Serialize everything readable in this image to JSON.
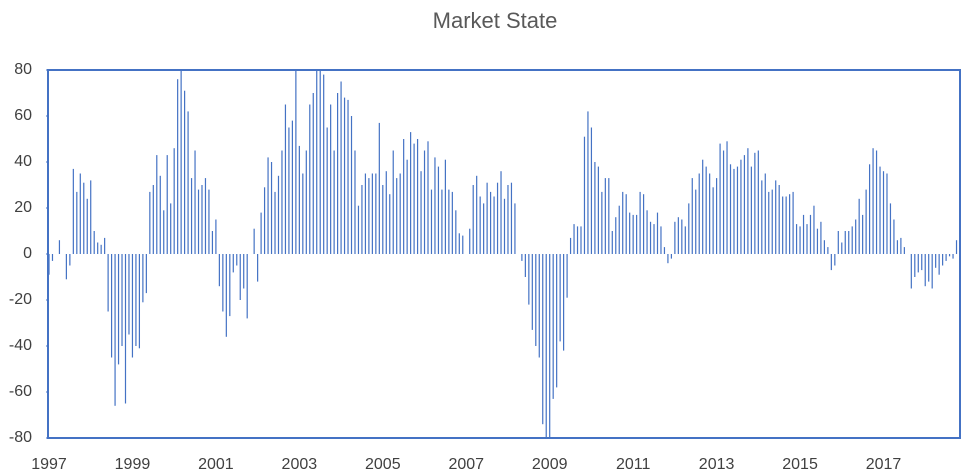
{
  "chart_data": {
    "type": "bar",
    "title": "Market State",
    "categories": [
      "1997",
      null,
      null,
      null,
      null,
      null,
      null,
      null,
      null,
      null,
      null,
      null,
      null,
      null,
      null,
      null,
      null,
      null,
      null,
      null,
      null,
      null,
      null,
      null,
      "1999",
      null,
      null,
      null,
      null,
      null,
      null,
      null,
      null,
      null,
      null,
      null,
      null,
      null,
      null,
      null,
      null,
      null,
      null,
      null,
      null,
      null,
      null,
      null,
      "2001",
      null,
      null,
      null,
      null,
      null,
      null,
      null,
      null,
      null,
      null,
      null,
      null,
      null,
      null,
      null,
      null,
      null,
      null,
      null,
      null,
      null,
      null,
      null,
      "2003",
      null,
      null,
      null,
      null,
      null,
      null,
      null,
      null,
      null,
      null,
      null,
      null,
      null,
      null,
      null,
      null,
      null,
      null,
      null,
      null,
      null,
      null,
      null,
      "2005",
      null,
      null,
      null,
      null,
      null,
      null,
      null,
      null,
      null,
      null,
      null,
      null,
      null,
      null,
      null,
      null,
      null,
      null,
      null,
      null,
      null,
      null,
      null,
      "2007",
      null,
      null,
      null,
      null,
      null,
      null,
      null,
      null,
      null,
      null,
      null,
      null,
      null,
      null,
      null,
      null,
      null,
      null,
      null,
      null,
      null,
      null,
      null,
      "2009",
      null,
      null,
      null,
      null,
      null,
      null,
      null,
      null,
      null,
      null,
      null,
      null,
      null,
      null,
      null,
      null,
      null,
      null,
      null,
      null,
      null,
      null,
      null,
      "2011",
      null,
      null,
      null,
      null,
      null,
      null,
      null,
      null,
      null,
      null,
      null,
      null,
      null,
      null,
      null,
      null,
      null,
      null,
      null,
      null,
      null,
      null,
      null,
      "2013",
      null,
      null,
      null,
      null,
      null,
      null,
      null,
      null,
      null,
      null,
      null,
      null,
      null,
      null,
      null,
      null,
      null,
      null,
      null,
      null,
      null,
      null,
      null,
      "2015",
      null,
      null,
      null,
      null,
      null,
      null,
      null,
      null,
      null,
      null,
      null,
      null,
      null,
      null,
      null,
      null,
      null,
      null,
      null,
      null,
      null,
      null,
      null,
      "2017",
      null,
      null,
      null,
      null,
      null,
      null,
      null,
      null,
      null,
      null,
      null,
      null,
      null,
      null,
      null,
      null,
      null,
      null,
      null,
      null,
      null
    ],
    "values": [
      -9,
      -3,
      0,
      6,
      0,
      -11,
      -5,
      37,
      27,
      35,
      31,
      24,
      32,
      10,
      5,
      4,
      7,
      -25,
      -45,
      -66,
      -48,
      -40,
      -65,
      -35,
      -45,
      -40,
      -41,
      -21,
      -17,
      27,
      30,
      43,
      34,
      19,
      43,
      22,
      46,
      76,
      80,
      71,
      62,
      33,
      45,
      28,
      30,
      33,
      28,
      10,
      15,
      -14,
      -25,
      -36,
      -27,
      -8,
      -5,
      -20,
      -15,
      -28,
      0,
      11,
      -12,
      18,
      29,
      42,
      40,
      27,
      34,
      45,
      65,
      55,
      58,
      80,
      47,
      35,
      45,
      65,
      70,
      80,
      80,
      78,
      55,
      65,
      45,
      70,
      75,
      68,
      67,
      60,
      45,
      21,
      30,
      35,
      33,
      35,
      35,
      57,
      30,
      36,
      26,
      45,
      33,
      35,
      50,
      41,
      53,
      48,
      50,
      36,
      45,
      49,
      28,
      42,
      38,
      28,
      41,
      28,
      27,
      19,
      9,
      8,
      0,
      11,
      30,
      34,
      25,
      22,
      31,
      27,
      25,
      31,
      36,
      24,
      30,
      31,
      22,
      0,
      -3,
      -10,
      -22,
      -33,
      -40,
      -45,
      -74,
      -80,
      -80,
      -63,
      -58,
      -38,
      -42,
      -19,
      7,
      13,
      12,
      12,
      51,
      62,
      55,
      40,
      38,
      27,
      33,
      33,
      10,
      16,
      21,
      27,
      26,
      18,
      17,
      17,
      27,
      26,
      19,
      14,
      13,
      18,
      12,
      3,
      -4,
      -2,
      14,
      16,
      15,
      12,
      22,
      33,
      28,
      35,
      41,
      38,
      35,
      29,
      33,
      48,
      45,
      49,
      39,
      37,
      38,
      41,
      43,
      46,
      38,
      44,
      45,
      32,
      35,
      27,
      28,
      32,
      30,
      25,
      25,
      26,
      27,
      13,
      12,
      17,
      13,
      17,
      21,
      11,
      14,
      6,
      3,
      -7,
      -5,
      10,
      5,
      10,
      10,
      12,
      15,
      24,
      17,
      28,
      39,
      46,
      45,
      38,
      36,
      35,
      22,
      15,
      6,
      7,
      3,
      0,
      -15,
      -10,
      -8,
      -7,
      -14,
      -12,
      -15,
      -6,
      -9,
      -5,
      -3,
      -1,
      -2,
      6
    ],
    "color": "#4472c4",
    "ylim": [
      -80,
      80
    ],
    "yticks": [
      -80,
      -60,
      -40,
      -20,
      0,
      20,
      40,
      60,
      80
    ],
    "grid": false
  }
}
